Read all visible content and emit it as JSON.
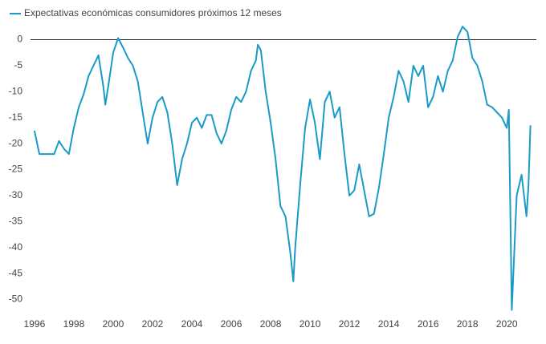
{
  "chart_data": {
    "type": "line",
    "x": [
      1996,
      1996.25,
      1996.5,
      1997,
      1997.25,
      1997.5,
      1997.75,
      1998,
      1998.25,
      1998.5,
      1998.75,
      1999,
      1999.25,
      1999.5,
      1999.6,
      1999.75,
      2000,
      2000.25,
      2000.5,
      2000.75,
      2001,
      2001.25,
      2001.5,
      2001.75,
      2002,
      2002.25,
      2002.5,
      2002.75,
      2003,
      2003.25,
      2003.5,
      2003.75,
      2004,
      2004.25,
      2004.5,
      2004.75,
      2005,
      2005.25,
      2005.5,
      2005.75,
      2006,
      2006.25,
      2006.5,
      2006.75,
      2007,
      2007.25,
      2007.35,
      2007.5,
      2007.75,
      2008,
      2008.25,
      2008.5,
      2008.75,
      2009,
      2009.15,
      2009.25,
      2009.5,
      2009.75,
      2010,
      2010.25,
      2010.5,
      2010.75,
      2011,
      2011.25,
      2011.5,
      2011.75,
      2012,
      2012.25,
      2012.5,
      2012.75,
      2013,
      2013.25,
      2013.5,
      2013.75,
      2014,
      2014.25,
      2014.5,
      2014.75,
      2015,
      2015.25,
      2015.5,
      2015.75,
      2016,
      2016.25,
      2016.5,
      2016.75,
      2017,
      2017.25,
      2017.5,
      2017.75,
      2018,
      2018.25,
      2018.5,
      2018.75,
      2019,
      2019.25,
      2019.5,
      2019.75,
      2020,
      2020.1,
      2020.25,
      2020.5,
      2020.75,
      2021,
      2021.1,
      2021.2
    ],
    "series": [
      {
        "name": "Expectativas económicas consumidores próximos 12 meses",
        "color": "#1a9bc7",
        "values": [
          -17.5,
          -22,
          -22,
          -22,
          -19.5,
          -21,
          -22,
          -17,
          -13,
          -10.5,
          -7,
          -5,
          -3,
          -9,
          -12.5,
          -9,
          -2.5,
          0.3,
          -1.5,
          -3.5,
          -5,
          -8,
          -14,
          -20,
          -15,
          -12,
          -11,
          -14,
          -20,
          -28,
          -23,
          -20,
          -16,
          -15,
          -17,
          -14.5,
          -14.5,
          -18,
          -20,
          -17.5,
          -13.5,
          -11,
          -12,
          -10,
          -6,
          -4,
          -1,
          -2,
          -10,
          -16,
          -23,
          -32,
          -34,
          -41,
          -46.5,
          -40,
          -28,
          -17,
          -11.5,
          -16,
          -23,
          -12,
          -10,
          -15,
          -13,
          -22,
          -30,
          -29,
          -24,
          -29,
          -34,
          -33.5,
          -28.5,
          -22,
          -15,
          -11,
          -6,
          -8,
          -12,
          -5,
          -7,
          -5,
          -13,
          -11,
          -7,
          -10,
          -6,
          -4,
          0.5,
          2.5,
          1.5,
          -3.5,
          -5,
          -8,
          -12.5,
          -13,
          -14,
          -15,
          -17,
          -13.5,
          -52,
          -30,
          -26,
          -34,
          -28,
          -16.5
        ]
      }
    ],
    "xlim": [
      1995.8,
      2021.5
    ],
    "xticks": [
      1996,
      1998,
      2000,
      2002,
      2004,
      2006,
      2008,
      2010,
      2012,
      2014,
      2016,
      2018,
      2020
    ],
    "ylim": [
      -53,
      3
    ],
    "yticks": [
      0,
      -5,
      -10,
      -15,
      -20,
      -25,
      -30,
      -35,
      -40,
      -45,
      -50
    ],
    "legend": "top-left"
  }
}
